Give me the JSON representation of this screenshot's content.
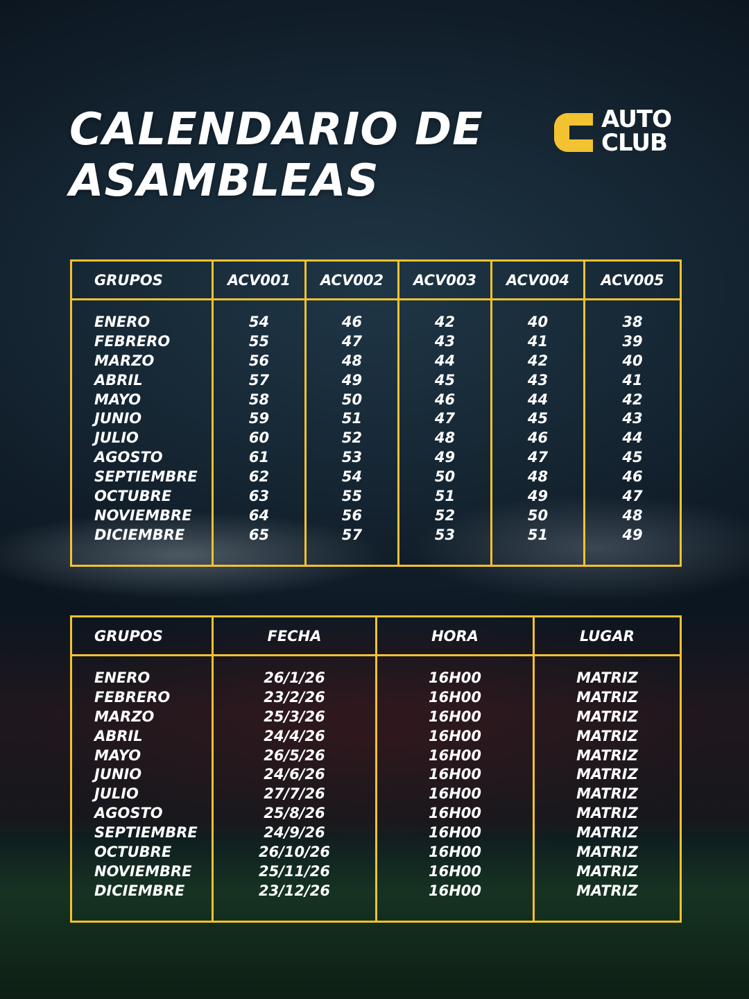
{
  "title": [
    "CALENDARIO DE",
    "ASAMBLEAS"
  ],
  "logo": {
    "line1": "AUTO",
    "line2": "CLUB",
    "mark_color": "#f2c230"
  },
  "colors": {
    "accent": "#f2c230",
    "text": "#ffffff"
  },
  "months": [
    "ENERO",
    "FEBRERO",
    "MARZO",
    "ABRIL",
    "MAYO",
    "JUNIO",
    "JULIO",
    "AGOSTO",
    "SEPTIEMBRE",
    "OCTUBRE",
    "NOVIEMBRE",
    "DICIEMBRE"
  ],
  "groups_table": {
    "headers": [
      "GRUPOS",
      "ACV001",
      "ACV002",
      "ACV003",
      "ACV004",
      "ACV005"
    ],
    "columns": [
      [
        "54",
        "55",
        "56",
        "57",
        "58",
        "59",
        "60",
        "61",
        "62",
        "63",
        "64",
        "65"
      ],
      [
        "46",
        "47",
        "48",
        "49",
        "50",
        "51",
        "52",
        "53",
        "54",
        "55",
        "56",
        "57"
      ],
      [
        "42",
        "43",
        "44",
        "45",
        "46",
        "47",
        "48",
        "49",
        "50",
        "51",
        "52",
        "53"
      ],
      [
        "40",
        "41",
        "42",
        "43",
        "44",
        "45",
        "46",
        "47",
        "48",
        "49",
        "50",
        "51"
      ],
      [
        "38",
        "39",
        "40",
        "41",
        "42",
        "43",
        "44",
        "45",
        "46",
        "47",
        "48",
        "49"
      ]
    ]
  },
  "schedule_table": {
    "headers": [
      "GRUPOS",
      "FECHA",
      "HORA",
      "LUGAR"
    ],
    "fecha": [
      "26/1/26",
      "23/2/26",
      "25/3/26",
      "24/4/26",
      "26/5/26",
      "24/6/26",
      "27/7/26",
      "25/8/26",
      "24/9/26",
      "26/10/26",
      "25/11/26",
      "23/12/26"
    ],
    "hora": [
      "16H00",
      "16H00",
      "16H00",
      "16H00",
      "16H00",
      "16H00",
      "16H00",
      "16H00",
      "16H00",
      "16H00",
      "16H00",
      "16H00"
    ],
    "lugar": [
      "MATRIZ",
      "MATRIZ",
      "MATRIZ",
      "MATRIZ",
      "MATRIZ",
      "MATRIZ",
      "MATRIZ",
      "MATRIZ",
      "MATRIZ",
      "MATRIZ",
      "MATRIZ",
      "MATRIZ"
    ]
  }
}
